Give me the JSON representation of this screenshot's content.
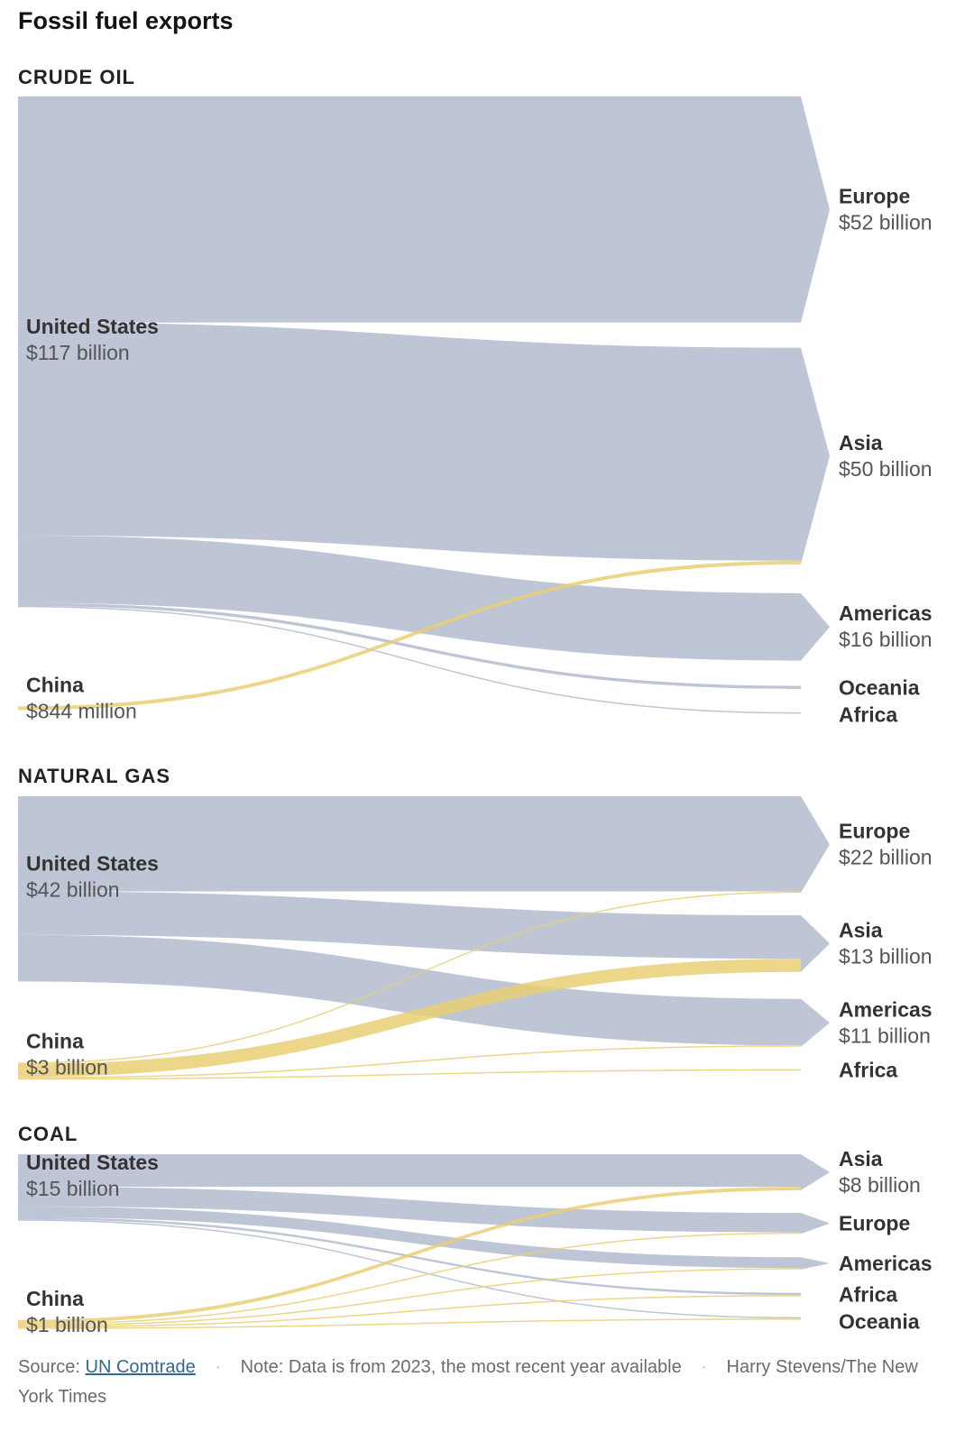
{
  "title": "Fossil fuel exports",
  "colors": {
    "us": "#b3bbce",
    "china": "#e9cf74",
    "text": "#333333"
  },
  "footer": {
    "source_label": "Source:",
    "source_link": "UN Comtrade",
    "note": "Note: Data is from 2023, the most recent year available",
    "credit": "Harry Stevens/The New York Times"
  },
  "chart_data": [
    {
      "type": "sankey",
      "title": "CRUDE OIL",
      "sources": [
        {
          "name": "United States",
          "label": "$117 billion"
        },
        {
          "name": "China",
          "label": "$844 million"
        }
      ],
      "targets": [
        {
          "name": "Europe",
          "label": "$52 billion"
        },
        {
          "name": "Asia",
          "label": "$50 billion"
        },
        {
          "name": "Americas",
          "label": "$16 billion"
        },
        {
          "name": "Oceania",
          "label": ""
        },
        {
          "name": "Africa",
          "label": ""
        }
      ],
      "flows": [
        {
          "from": "United States",
          "to": "Europe",
          "value": 52
        },
        {
          "from": "United States",
          "to": "Asia",
          "value": 49
        },
        {
          "from": "United States",
          "to": "Americas",
          "value": 15.5
        },
        {
          "from": "United States",
          "to": "Oceania",
          "value": 0.7
        },
        {
          "from": "United States",
          "to": "Africa",
          "value": 0.3
        },
        {
          "from": "China",
          "to": "Asia",
          "value": 0.84
        }
      ]
    },
    {
      "type": "sankey",
      "title": "NATURAL GAS",
      "sources": [
        {
          "name": "United States",
          "label": "$42 billion"
        },
        {
          "name": "China",
          "label": "$3 billion"
        }
      ],
      "targets": [
        {
          "name": "Europe",
          "label": "$22 billion"
        },
        {
          "name": "Asia",
          "label": "$13 billion"
        },
        {
          "name": "Americas",
          "label": "$11 billion"
        },
        {
          "name": "Africa",
          "label": ""
        }
      ],
      "flows": [
        {
          "from": "United States",
          "to": "Europe",
          "value": 21.9
        },
        {
          "from": "United States",
          "to": "Asia",
          "value": 10
        },
        {
          "from": "United States",
          "to": "Americas",
          "value": 10.7
        },
        {
          "from": "China",
          "to": "Europe",
          "value": 0.1
        },
        {
          "from": "China",
          "to": "Asia",
          "value": 3
        },
        {
          "from": "China",
          "to": "Americas",
          "value": 0.3
        },
        {
          "from": "China",
          "to": "Africa",
          "value": 0.1
        }
      ]
    },
    {
      "type": "sankey",
      "title": "COAL",
      "sources": [
        {
          "name": "United States",
          "label": "$15 billion"
        },
        {
          "name": "China",
          "label": "$1 billion"
        }
      ],
      "targets": [
        {
          "name": "Asia",
          "label": "$8 billion"
        },
        {
          "name": "Europe",
          "label": ""
        },
        {
          "name": "Americas",
          "label": ""
        },
        {
          "name": "Africa",
          "label": ""
        },
        {
          "name": "Oceania",
          "label": ""
        }
      ],
      "flows": [
        {
          "from": "United States",
          "to": "Asia",
          "value": 7.5
        },
        {
          "from": "United States",
          "to": "Europe",
          "value": 4.5
        },
        {
          "from": "United States",
          "to": "Americas",
          "value": 2.5
        },
        {
          "from": "United States",
          "to": "Africa",
          "value": 0.5
        },
        {
          "from": "United States",
          "to": "Oceania",
          "value": 0.1
        },
        {
          "from": "China",
          "to": "Asia",
          "value": 0.8
        },
        {
          "from": "China",
          "to": "Europe",
          "value": 0.05
        },
        {
          "from": "China",
          "to": "Americas",
          "value": 0.05
        },
        {
          "from": "China",
          "to": "Africa",
          "value": 0.05
        },
        {
          "from": "China",
          "to": "Oceania",
          "value": 0.05
        }
      ]
    }
  ]
}
